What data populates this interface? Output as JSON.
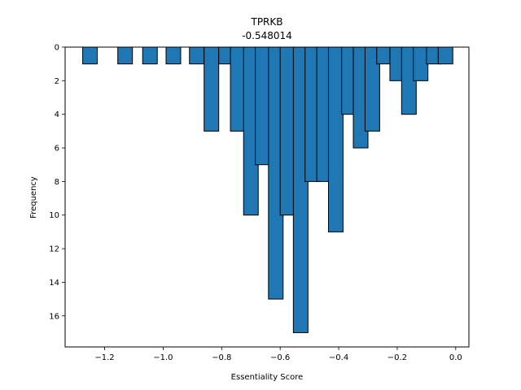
{
  "chart_data": {
    "type": "bar",
    "title": "TPRKB",
    "subtitle": "-0.548014",
    "xlabel": "Essentiality Score",
    "ylabel": "Frequency",
    "y_axis_inverted": true,
    "xlim": [
      -1.335,
      0.045
    ],
    "ylim": [
      0,
      17.85
    ],
    "bin_width": 0.05,
    "x_ticks": [
      -1.2,
      -1.0,
      -0.8,
      -0.6,
      -0.4,
      -0.2,
      0.0
    ],
    "x_tick_labels": [
      "−1.2",
      "−1.0",
      "−0.8",
      "−0.6",
      "−0.4",
      "−0.2",
      "0.0"
    ],
    "y_ticks": [
      0,
      2,
      4,
      6,
      8,
      10,
      12,
      14,
      16
    ],
    "y_tick_labels": [
      "0",
      "2",
      "4",
      "6",
      "8",
      "10",
      "12",
      "14",
      "16"
    ],
    "bins": [
      {
        "x": -1.25,
        "value": 1
      },
      {
        "x": -1.13,
        "value": 1
      },
      {
        "x": -1.045,
        "value": 1
      },
      {
        "x": -0.965,
        "value": 1
      },
      {
        "x": -0.885,
        "value": 1
      },
      {
        "x": -0.835,
        "value": 5
      },
      {
        "x": -0.785,
        "value": 1
      },
      {
        "x": -0.745,
        "value": 5
      },
      {
        "x": -0.7,
        "value": 10
      },
      {
        "x": -0.66,
        "value": 7
      },
      {
        "x": -0.615,
        "value": 15
      },
      {
        "x": -0.575,
        "value": 10
      },
      {
        "x": -0.53,
        "value": 17
      },
      {
        "x": -0.49,
        "value": 8
      },
      {
        "x": -0.45,
        "value": 8
      },
      {
        "x": -0.41,
        "value": 11
      },
      {
        "x": -0.365,
        "value": 4
      },
      {
        "x": -0.325,
        "value": 6
      },
      {
        "x": -0.285,
        "value": 5
      },
      {
        "x": -0.245,
        "value": 1
      },
      {
        "x": -0.2,
        "value": 2
      },
      {
        "x": -0.16,
        "value": 4
      },
      {
        "x": -0.12,
        "value": 2
      },
      {
        "x": -0.075,
        "value": 1
      },
      {
        "x": -0.035,
        "value": 1
      }
    ],
    "bar_color": "#1f77b4",
    "edge_color": "#000000",
    "grid": false,
    "legend": "none"
  }
}
